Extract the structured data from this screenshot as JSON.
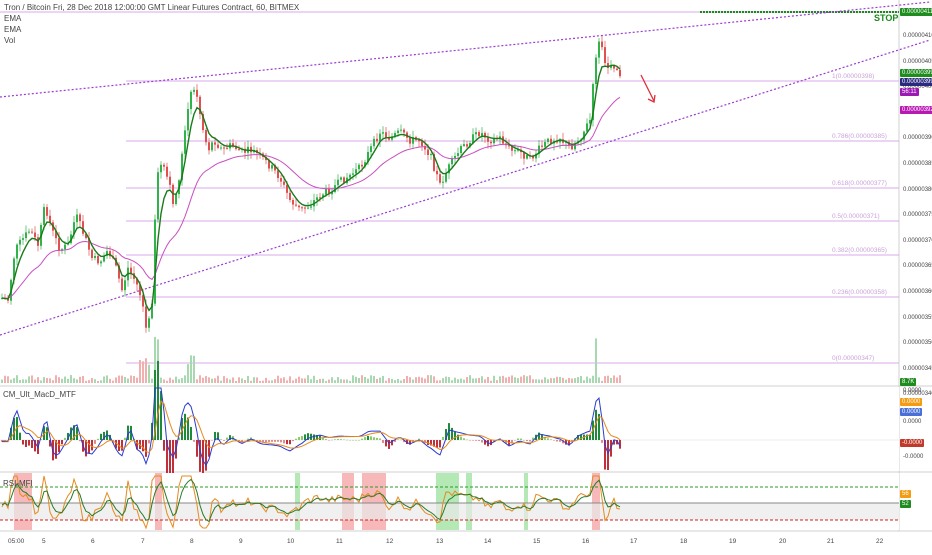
{
  "header": {
    "title": "Tron / Bitcoin Fri, 28 Dec 2018 12:00:00 GMT Linear Futures Contract, 60, BITMEX",
    "indicators": [
      "EMA",
      "EMA",
      "Vol"
    ]
  },
  "stop_label": "STOP",
  "price_badges": [
    {
      "text": "0.00000411",
      "color": "#1e8c1e"
    },
    {
      "text": "0.00000399",
      "color": "#1e8c1e"
    },
    {
      "text": "0.00000399",
      "color": "#2a2a80"
    },
    {
      "text": "56:11",
      "color": "#9b1ab3"
    },
    {
      "text": "0.00000392",
      "color": "#b71ab3"
    }
  ],
  "price_axis": [
    "0.00000410",
    "0.00000405",
    "0.00000400",
    "0.00000395",
    "0.00000390",
    "0.00000385",
    "0.00000380",
    "0.00000375",
    "0.00000370",
    "0.00000365",
    "0.00000360",
    "0.00000355",
    "0.00000350",
    "0.00000345",
    "0.00000340"
  ],
  "fib_levels": [
    {
      "text": "1(0.00000398)",
      "color": "#c9a4d8"
    },
    {
      "text": "0.786(0.00000385)",
      "color": "#c9a4d8"
    },
    {
      "text": "0.618(0.00000377)",
      "color": "#c9a4d8"
    },
    {
      "text": "0.5(0.00000371)",
      "color": "#c9a4d8"
    },
    {
      "text": "0.382(0.00000365)",
      "color": "#c9a4d8"
    },
    {
      "text": "0.236(0.00000358)",
      "color": "#c9a4d8"
    },
    {
      "text": "0(0.00000347)",
      "color": "#c9a4d8"
    }
  ],
  "macd": {
    "title": "CM_Ult_MacD_MTF",
    "axis": [
      "0.0000",
      "0.0000",
      "-0.0000"
    ],
    "badges": [
      {
        "text": "0.0000",
        "color": "#f39c12"
      },
      {
        "text": "0.0000",
        "color": "#4a6fd6"
      },
      {
        "text": "-0.0000",
        "color": "#c0392b"
      }
    ]
  },
  "rsi": {
    "title": "RSI-MFI",
    "badges": [
      {
        "text": "56",
        "color": "#f39c12"
      },
      {
        "text": "52",
        "color": "#1e8c1e"
      }
    ]
  },
  "vol_badge": {
    "text": "8.7K",
    "color": "#1e8c1e"
  },
  "time_axis": [
    "05:00",
    "5",
    "6",
    "7",
    "8",
    "9",
    "10",
    "11",
    "12",
    "13",
    "14",
    "15",
    "16",
    "17",
    "18",
    "19",
    "20",
    "21",
    "22"
  ],
  "colors": {
    "up": "#26a69a",
    "down": "#ef5350",
    "ema_fast": "#1a7a1a",
    "ema_slow": "#c94fbf",
    "trendline": "#9b3bd1",
    "fib_line": "#d7a8e8"
  }
}
